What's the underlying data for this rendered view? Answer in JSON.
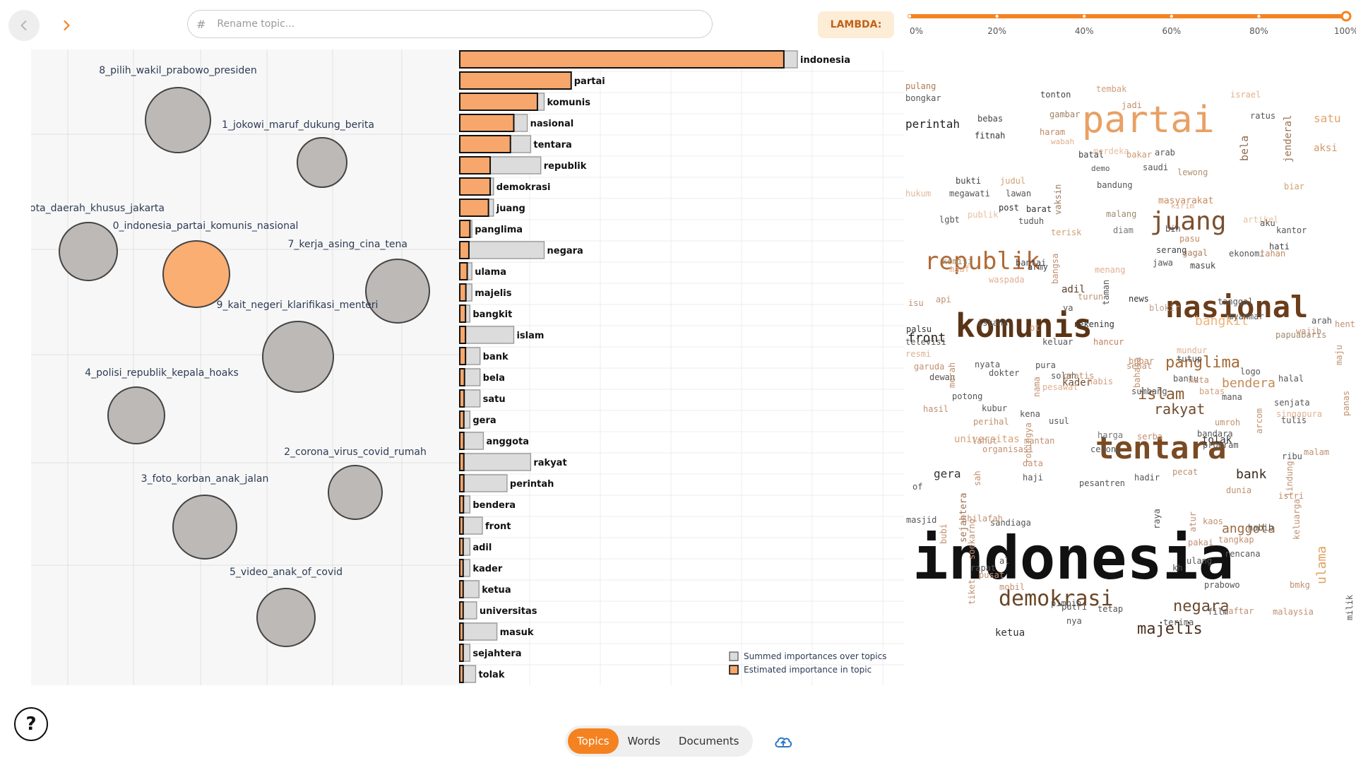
{
  "nav": {
    "back_icon": "chevron-left-icon",
    "forward_icon": "chevron-right-icon",
    "accent": "#f58220"
  },
  "rename": {
    "hash": "#",
    "placeholder": "Rename topic..."
  },
  "lambda": {
    "label": "LAMBDA:",
    "value": 1.0,
    "ticks": [
      "0%",
      "20%",
      "40%",
      "60%",
      "80%",
      "100%"
    ]
  },
  "topics": [
    {
      "label": "8_pilih_wakil_prabowo_presiden",
      "selected": false
    },
    {
      "label": "1_jokowi_maruf_dukung_berita",
      "selected": false
    },
    {
      "label": "ota_daerah_khusus_jakarta",
      "selected": false
    },
    {
      "label": "0_indonesia_partai_komunis_nasional",
      "selected": true
    },
    {
      "label": "7_kerja_asing_cina_tena",
      "selected": false
    },
    {
      "label": "9_kait_negeri_klarifikasi_menteri",
      "selected": false
    },
    {
      "label": "4_polisi_republik_kepala_hoaks",
      "selected": false
    },
    {
      "label": "2_corona_virus_covid_rumah",
      "selected": false
    },
    {
      "label": "3_foto_korban_anak_jalan",
      "selected": false
    },
    {
      "label": "5_video_anak_of_covid",
      "selected": false
    }
  ],
  "bar_chart": {
    "words": [
      "indonesia",
      "partai",
      "komunis",
      "nasional",
      "tentara",
      "republik",
      "demokrasi",
      "juang",
      "panglima",
      "negara",
      "ulama",
      "majelis",
      "bangkit",
      "islam",
      "bank",
      "bela",
      "satu",
      "gera",
      "anggota",
      "rakyat",
      "perintah",
      "bendera",
      "front",
      "adil",
      "kader",
      "ketua",
      "universitas",
      "masuk",
      "sejahtera",
      "tolak"
    ],
    "summed": [
      1.0,
      0.33,
      0.25,
      0.2,
      0.21,
      0.24,
      0.1,
      0.1,
      0.036,
      0.25,
      0.036,
      0.036,
      0.03,
      0.16,
      0.06,
      0.06,
      0.06,
      0.03,
      0.07,
      0.21,
      0.14,
      0.03,
      0.067,
      0.03,
      0.03,
      0.057,
      0.05,
      0.11,
      0.03,
      0.047
    ],
    "estimated": [
      0.96,
      0.33,
      0.23,
      0.16,
      0.15,
      0.09,
      0.09,
      0.085,
      0.03,
      0.027,
      0.022,
      0.018,
      0.017,
      0.017,
      0.017,
      0.014,
      0.013,
      0.012,
      0.012,
      0.012,
      0.012,
      0.011,
      0.01,
      0.01,
      0.01,
      0.01,
      0.01,
      0.01,
      0.01,
      0.01
    ],
    "legend": [
      "Summed importances over topics",
      "Estimated importance in topic"
    ],
    "colors": {
      "summed": "#dcdcdc",
      "estimated": "#f7a76c"
    }
  },
  "word_cloud": [
    {
      "t": "indonesia",
      "c": "#111111",
      "w": "bold"
    },
    {
      "t": "komunis",
      "c": "#5a3416",
      "w": "bold"
    },
    {
      "t": "partai",
      "c": "#e8a064",
      "w": "normal"
    },
    {
      "t": "nasional",
      "c": "#6b3d1a",
      "w": "bold"
    },
    {
      "t": "tentara",
      "c": "#7a4a22",
      "w": "bold"
    },
    {
      "t": "republik",
      "c": "#b06a35",
      "w": "normal"
    },
    {
      "t": "juang",
      "c": "#7a5030",
      "w": "normal"
    },
    {
      "t": "demokrasi",
      "c": "#6b4525",
      "w": "normal"
    },
    {
      "t": "panglima",
      "c": "#a46834",
      "w": "normal"
    },
    {
      "t": "negara",
      "c": "#6b4a2e",
      "w": "normal"
    },
    {
      "t": "majelis",
      "c": "#4a3020",
      "w": "normal"
    },
    {
      "t": "anggota",
      "c": "#9a6a40",
      "w": "normal"
    },
    {
      "t": "islam",
      "c": "#8a5a30",
      "w": "normal"
    },
    {
      "t": "rakyat",
      "c": "#6e4a2c",
      "w": "normal"
    },
    {
      "t": "bendera",
      "c": "#c58a55",
      "w": "normal"
    },
    {
      "t": "bangkit",
      "c": "#efb47a",
      "w": "normal"
    },
    {
      "t": "ulama",
      "c": "#e0a060",
      "w": "normal"
    },
    {
      "t": "bank",
      "c": "#3a2a1e",
      "w": "normal"
    },
    {
      "t": "front",
      "c": "#2a2018",
      "w": "normal"
    },
    {
      "t": "satu",
      "c": "#e0a36a",
      "w": "normal"
    },
    {
      "t": "aksi",
      "c": "#d09868",
      "w": "normal"
    },
    {
      "t": "perintah",
      "c": "#222222",
      "w": "normal"
    },
    {
      "t": "bela",
      "c": "#8a6a50",
      "w": "normal"
    },
    {
      "t": "jenderal",
      "c": "#9a7050",
      "w": "normal"
    },
    {
      "t": "masyarakat",
      "c": "#c98a5a",
      "w": "normal"
    },
    {
      "t": "gera",
      "c": "#333333",
      "w": "normal"
    },
    {
      "t": "ketua",
      "c": "#333333",
      "w": "normal"
    },
    {
      "t": "universitas",
      "c": "#d8a27a",
      "w": "normal"
    },
    {
      "t": "kader",
      "c": "#6b4a2e",
      "w": "normal"
    },
    {
      "t": "tolak",
      "c": "#333333",
      "w": "normal"
    },
    {
      "t": "adil",
      "c": "#5a4030",
      "w": "normal"
    },
    {
      "t": "sejahtera",
      "c": "#a07050",
      "w": "normal"
    },
    {
      "t": "masuk",
      "c": "#444444",
      "w": "normal"
    },
    {
      "t": "pulang",
      "c": "#b07a52",
      "w": "normal"
    },
    {
      "t": "bongkar",
      "c": "#555555",
      "w": "normal"
    },
    {
      "t": "tonton",
      "c": "#444444",
      "w": "normal"
    },
    {
      "t": "tembak",
      "c": "#d3a07a",
      "w": "normal"
    },
    {
      "t": "israel",
      "c": "#e3b08a",
      "w": "normal"
    },
    {
      "t": "jadi",
      "c": "#c09070",
      "w": "normal"
    },
    {
      "t": "bebas",
      "c": "#444444",
      "w": "normal"
    },
    {
      "t": "gambar",
      "c": "#a08060",
      "w": "normal"
    },
    {
      "t": "ratus",
      "c": "#555555",
      "w": "normal"
    },
    {
      "t": "fitnah",
      "c": "#333333",
      "w": "normal"
    },
    {
      "t": "haram",
      "c": "#c08a64",
      "w": "normal"
    },
    {
      "t": "wabah",
      "c": "#e0b08a",
      "w": "normal"
    },
    {
      "t": "merdeka",
      "c": "#e8c0a0",
      "w": "normal"
    },
    {
      "t": "bakar",
      "c": "#c89a70",
      "w": "normal"
    },
    {
      "t": "arab",
      "c": "#555555",
      "w": "normal"
    },
    {
      "t": "batal",
      "c": "#444444",
      "w": "normal"
    },
    {
      "t": "demo",
      "c": "#555555",
      "w": "normal"
    },
    {
      "t": "saudi",
      "c": "#555555",
      "w": "normal"
    },
    {
      "t": "lewong",
      "c": "#b09070",
      "w": "normal"
    },
    {
      "t": "bukti",
      "c": "#444444",
      "w": "normal"
    },
    {
      "t": "judul",
      "c": "#d0a07a",
      "w": "normal"
    },
    {
      "t": "megawati",
      "c": "#555555",
      "w": "normal"
    },
    {
      "t": "lawan",
      "c": "#555555",
      "w": "normal"
    },
    {
      "t": "vaksin",
      "c": "#9a7a5a",
      "w": "normal"
    },
    {
      "t": "bandung",
      "c": "#555555",
      "w": "normal"
    },
    {
      "t": "biar",
      "c": "#d0a070",
      "w": "normal"
    },
    {
      "t": "hukum",
      "c": "#e0b89a",
      "w": "normal"
    },
    {
      "t": "post",
      "c": "#333333",
      "w": "normal"
    },
    {
      "t": "barat",
      "c": "#333333",
      "w": "normal"
    },
    {
      "t": "publik",
      "c": "#e8c0a0",
      "w": "normal"
    },
    {
      "t": "malang",
      "c": "#a08a70",
      "w": "normal"
    },
    {
      "t": "kirim",
      "c": "#e0b090",
      "w": "normal"
    },
    {
      "t": "artikel",
      "c": "#e8c0a0",
      "w": "normal"
    },
    {
      "t": "aku",
      "c": "#555555",
      "w": "normal"
    },
    {
      "t": "lgbt",
      "c": "#555555",
      "w": "normal"
    },
    {
      "t": "tuduh",
      "c": "#555555",
      "w": "normal"
    },
    {
      "t": "bin",
      "c": "#555555",
      "w": "normal"
    },
    {
      "t": "diam",
      "c": "#777777",
      "w": "normal"
    },
    {
      "t": "terisk",
      "c": "#d0a070",
      "w": "normal"
    },
    {
      "t": "kantor",
      "c": "#555555",
      "w": "normal"
    },
    {
      "t": "pasu",
      "c": "#c08a60",
      "w": "normal"
    },
    {
      "t": "hati",
      "c": "#444444",
      "w": "normal"
    },
    {
      "t": "serang",
      "c": "#444444",
      "w": "normal"
    },
    {
      "t": "gagal",
      "c": "#aa8060",
      "w": "normal"
    },
    {
      "t": "ekonomi",
      "c": "#555555",
      "w": "normal"
    },
    {
      "t": "tahan",
      "c": "#c08a60",
      "w": "normal"
    },
    {
      "t": "jawa",
      "c": "#555555",
      "w": "normal"
    },
    {
      "t": "komisi",
      "c": "#a08a70",
      "w": "normal"
    },
    {
      "t": "bantai",
      "c": "#444444",
      "w": "normal"
    },
    {
      "t": "army",
      "c": "#444444",
      "w": "normal"
    },
    {
      "t": "menang",
      "c": "#e0b090",
      "w": "normal"
    },
    {
      "t": "maaf",
      "c": "#e0b090",
      "w": "normal"
    },
    {
      "t": "waspada",
      "c": "#e0b090",
      "w": "normal"
    },
    {
      "t": "news",
      "c": "#333333",
      "w": "normal"
    },
    {
      "t": "blokir",
      "c": "#c0a090",
      "w": "normal"
    },
    {
      "t": "tanggal",
      "c": "#555555",
      "w": "normal"
    },
    {
      "t": "myanmar",
      "c": "#555555",
      "w": "normal"
    },
    {
      "t": "arah",
      "c": "#555555",
      "w": "normal"
    },
    {
      "t": "istana",
      "c": "#555555",
      "w": "normal"
    },
    {
      "t": "rekening",
      "c": "#333333",
      "w": "normal"
    },
    {
      "t": "palsu",
      "c": "#333333",
      "w": "normal"
    },
    {
      "t": "papuabaris",
      "c": "#a08a70",
      "w": "normal"
    },
    {
      "t": "televisi",
      "c": "#555555",
      "w": "normal"
    },
    {
      "t": "keluar",
      "c": "#555555",
      "w": "normal"
    },
    {
      "t": "hancur",
      "c": "#c08060",
      "w": "normal"
    },
    {
      "t": "mundur",
      "c": "#e0b090",
      "w": "normal"
    },
    {
      "t": "tutup",
      "c": "#555555",
      "w": "normal"
    },
    {
      "t": "logo",
      "c": "#555555",
      "w": "normal"
    },
    {
      "t": "resmi",
      "c": "#e0b090",
      "w": "normal"
    },
    {
      "t": "garuda",
      "c": "#c09070",
      "w": "normal"
    },
    {
      "t": "nyata",
      "c": "#555555",
      "w": "normal"
    },
    {
      "t": "pura",
      "c": "#555555",
      "w": "normal"
    },
    {
      "t": "solah",
      "c": "#555555",
      "w": "normal"
    },
    {
      "t": "gratis",
      "c": "#c09070",
      "w": "normal"
    },
    {
      "t": "bantu",
      "c": "#555555",
      "w": "normal"
    },
    {
      "t": "halal",
      "c": "#555555",
      "w": "normal"
    },
    {
      "t": "dewan",
      "c": "#555555",
      "w": "normal"
    },
    {
      "t": "dokter",
      "c": "#555555",
      "w": "normal"
    },
    {
      "t": "pesawat",
      "c": "#e0b090",
      "w": "normal"
    },
    {
      "t": "habis",
      "c": "#d0a080",
      "w": "normal"
    },
    {
      "t": "sumbang",
      "c": "#555555",
      "w": "normal"
    },
    {
      "t": "batas",
      "c": "#d0a080",
      "w": "normal"
    },
    {
      "t": "potong",
      "c": "#555555",
      "w": "normal"
    },
    {
      "t": "mana",
      "c": "#555555",
      "w": "normal"
    },
    {
      "t": "kubur",
      "c": "#555555",
      "w": "normal"
    },
    {
      "t": "senjata",
      "c": "#555555",
      "w": "normal"
    },
    {
      "t": "hasil",
      "c": "#c09070",
      "w": "normal"
    },
    {
      "t": "kena",
      "c": "#555555",
      "w": "normal"
    },
    {
      "t": "usul",
      "c": "#555555",
      "w": "normal"
    },
    {
      "t": "singapura",
      "c": "#e0b090",
      "w": "normal"
    },
    {
      "t": "perihal",
      "c": "#c09070",
      "w": "normal"
    },
    {
      "t": "tulis",
      "c": "#555555",
      "w": "normal"
    },
    {
      "t": "harga",
      "c": "#777777",
      "w": "normal"
    },
    {
      "t": "serba",
      "c": "#c09070",
      "w": "normal"
    },
    {
      "t": "bandara",
      "c": "#555555",
      "w": "normal"
    },
    {
      "t": "lahut",
      "c": "#c09070",
      "w": "normal"
    },
    {
      "t": "program",
      "c": "#555555",
      "w": "normal"
    },
    {
      "t": "organisasi",
      "c": "#c09070",
      "w": "normal"
    },
    {
      "t": "cebong",
      "c": "#555555",
      "w": "normal"
    },
    {
      "t": "ribu",
      "c": "#555555",
      "w": "normal"
    },
    {
      "t": "data",
      "c": "#c09070",
      "w": "normal"
    },
    {
      "t": "hadir",
      "c": "#555555",
      "w": "normal"
    },
    {
      "t": "malam",
      "c": "#c09070",
      "w": "normal"
    },
    {
      "t": "haji",
      "c": "#555555",
      "w": "normal"
    },
    {
      "t": "pesantren",
      "c": "#555555",
      "w": "normal"
    },
    {
      "t": "dunia",
      "c": "#c09070",
      "w": "normal"
    },
    {
      "t": "masjid",
      "c": "#555555",
      "w": "normal"
    },
    {
      "t": "sandiaga",
      "c": "#555555",
      "w": "normal"
    },
    {
      "t": "kaos",
      "c": "#c09070",
      "w": "normal"
    },
    {
      "t": "habib",
      "c": "#555555",
      "w": "normal"
    },
    {
      "t": "khilafah",
      "c": "#c09070",
      "w": "normal"
    },
    {
      "t": "tangkap",
      "c": "#c09070",
      "w": "normal"
    },
    {
      "t": "pakai",
      "c": "#c09070",
      "w": "normal"
    },
    {
      "t": "rencana",
      "c": "#555555",
      "w": "normal"
    },
    {
      "t": "rapat",
      "c": "#555555",
      "w": "normal"
    },
    {
      "t": "ulang",
      "c": "#555555",
      "w": "normal"
    },
    {
      "t": "kh",
      "c": "#555555",
      "w": "normal"
    },
    {
      "t": "pusat",
      "c": "#c09070",
      "w": "normal"
    },
    {
      "t": "prabowo",
      "c": "#555555",
      "w": "normal"
    },
    {
      "t": "bmkg",
      "c": "#c09070",
      "w": "normal"
    },
    {
      "t": "mobil",
      "c": "#c09070",
      "w": "normal"
    },
    {
      "t": "daftar",
      "c": "#c09070",
      "w": "normal"
    },
    {
      "t": "pimpin",
      "c": "#555555",
      "w": "normal"
    },
    {
      "t": "putri",
      "c": "#555555",
      "w": "normal"
    },
    {
      "t": "tetap",
      "c": "#555555",
      "w": "normal"
    },
    {
      "t": "terima",
      "c": "#555555",
      "w": "normal"
    },
    {
      "t": "film",
      "c": "#555555",
      "w": "normal"
    },
    {
      "t": "malaysia",
      "c": "#c09070",
      "w": "normal"
    },
    {
      "t": "nya",
      "c": "#555555",
      "w": "normal"
    },
    {
      "t": "al",
      "c": "#555555",
      "w": "normal"
    },
    {
      "t": "of",
      "c": "#555555",
      "w": "normal"
    },
    {
      "t": "ya",
      "c": "#555555",
      "w": "normal"
    },
    {
      "t": "pt",
      "c": "#c09070",
      "w": "normal"
    },
    {
      "t": "isu",
      "c": "#c09070",
      "w": "normal"
    },
    {
      "t": "turun",
      "c": "#c09070",
      "w": "normal"
    },
    {
      "t": "mata",
      "c": "#c09070",
      "w": "normal"
    },
    {
      "t": "wajib",
      "c": "#c09070",
      "w": "normal"
    },
    {
      "t": "henti",
      "c": "#c09070",
      "w": "normal"
    },
    {
      "t": "bubar",
      "c": "#c09070",
      "w": "normal"
    },
    {
      "t": "sehat",
      "c": "#c09070",
      "w": "normal"
    },
    {
      "t": "istri",
      "c": "#c09070",
      "w": "normal"
    },
    {
      "t": "umroh",
      "c": "#c09070",
      "w": "normal"
    },
    {
      "t": "pecat",
      "c": "#c09070",
      "w": "normal"
    },
    {
      "t": "api",
      "c": "#c09070",
      "w": "normal"
    },
    {
      "t": "bangsa",
      "c": "#c09070",
      "w": "normal"
    },
    {
      "t": "taman",
      "c": "#555555",
      "w": "normal"
    },
    {
      "t": "bahasa",
      "c": "#c09070",
      "w": "normal"
    },
    {
      "t": "panas",
      "c": "#c09070",
      "w": "normal"
    },
    {
      "t": "arcom",
      "c": "#c09070",
      "w": "normal"
    },
    {
      "t": "lindung",
      "c": "#c09070",
      "w": "normal"
    },
    {
      "t": "keluarga",
      "c": "#c09070",
      "w": "normal"
    },
    {
      "t": "milik",
      "c": "#555555",
      "w": "normal"
    },
    {
      "t": "soekarno",
      "c": "#c09070",
      "w": "normal"
    },
    {
      "t": "raya",
      "c": "#555555",
      "w": "normal"
    },
    {
      "t": "atur",
      "c": "#c09070",
      "w": "normal"
    },
    {
      "t": "tiket",
      "c": "#c09070",
      "w": "normal"
    },
    {
      "t": "bubi",
      "c": "#c09070",
      "w": "normal"
    },
    {
      "t": "rohingya",
      "c": "#c09070",
      "w": "normal"
    },
    {
      "t": "nama",
      "c": "#c09070",
      "w": "normal"
    },
    {
      "t": "merah",
      "c": "#c09070",
      "w": "normal"
    },
    {
      "t": "maju",
      "c": "#c09070",
      "w": "normal"
    },
    {
      "t": "sah",
      "c": "#c09070",
      "w": "normal"
    },
    {
      "t": "mantan",
      "c": "#c09070",
      "w": "normal"
    }
  ],
  "tabs": [
    "Topics",
    "Words",
    "Documents"
  ],
  "help_label": "?",
  "cloud_icon": "cloud-upload-icon"
}
